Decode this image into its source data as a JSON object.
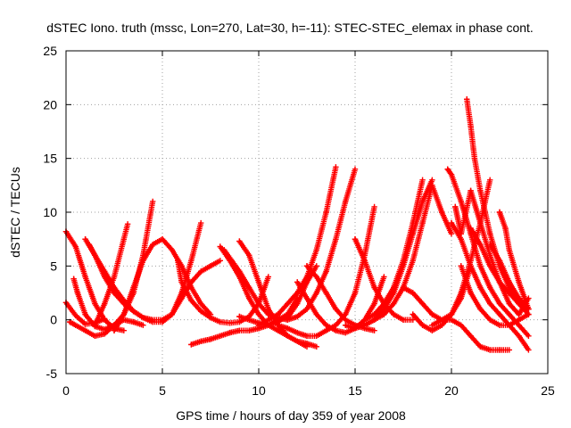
{
  "chart_data": {
    "type": "scatter",
    "title": "dSTEC Iono. truth (mssc, Lon=270, Lat=30, h=-11): STEC-STEC_elemax in phase cont.",
    "xlabel": "GPS time / hours of day 359 of year 2008",
    "ylabel": "dSTEC  / TECUs",
    "xlim": [
      0,
      25
    ],
    "ylim": [
      -5,
      25
    ],
    "x_ticks": [
      0,
      5,
      10,
      15,
      20,
      25
    ],
    "y_ticks": [
      -5,
      0,
      5,
      10,
      15,
      20,
      25
    ],
    "x_tick_labels": [
      "0",
      "5",
      "10",
      "15",
      "20",
      "25"
    ],
    "y_tick_labels": [
      "-5",
      "0",
      "5",
      "10",
      "15",
      "20",
      "25"
    ],
    "grid": true,
    "marker": "+",
    "color": "#ff0000",
    "series": [
      {
        "x": [
          0.0,
          0.5,
          1.0,
          1.5,
          2.0,
          2.5,
          3.0
        ],
        "y": [
          8.2,
          6.8,
          4.0,
          1.5,
          0.0,
          -0.8,
          -1.0
        ]
      },
      {
        "x": [
          0.0,
          0.5,
          1.0,
          1.5,
          2.0
        ],
        "y": [
          1.6,
          0.4,
          -0.4,
          -0.3,
          0.1
        ]
      },
      {
        "x": [
          0.2,
          0.5,
          1.0,
          1.5,
          2.0,
          2.5,
          3.0,
          3.5,
          4.0,
          4.5
        ],
        "y": [
          -0.2,
          -0.5,
          -1.0,
          -1.5,
          -1.3,
          -0.5,
          0.5,
          2.5,
          6.0,
          11.0
        ]
      },
      {
        "x": [
          0.4,
          0.6,
          1.0,
          1.5,
          2.0,
          2.5,
          3.0,
          3.5,
          4.0
        ],
        "y": [
          3.8,
          2.5,
          0.5,
          -0.6,
          -0.9,
          -0.5,
          0.0,
          -0.2,
          -0.5
        ]
      },
      {
        "x": [
          1.0,
          1.5,
          2.0,
          2.5,
          3.0,
          3.5,
          4.0,
          4.5,
          5.0,
          5.5,
          6.0,
          6.5,
          7.0,
          7.5,
          8.0
        ],
        "y": [
          7.5,
          6.0,
          4.0,
          2.5,
          1.5,
          0.8,
          0.2,
          0.0,
          0.0,
          0.5,
          2.0,
          3.5,
          4.5,
          5.0,
          5.5
        ]
      },
      {
        "x": [
          1.2,
          1.5,
          2.0,
          2.5,
          3.0,
          3.5,
          4.0,
          4.5,
          5.0,
          5.5,
          6.0,
          6.5,
          7.0
        ],
        "y": [
          7.0,
          6.0,
          4.5,
          3.0,
          1.8,
          0.8,
          0.2,
          -0.2,
          -0.2,
          0.5,
          2.5,
          5.5,
          9.0
        ]
      },
      {
        "x": [
          1.5,
          2.0,
          2.5,
          3.0,
          3.2
        ],
        "y": [
          -0.5,
          1.5,
          4.0,
          7.5,
          8.9
        ]
      },
      {
        "x": [
          2.5,
          3.0,
          3.5,
          4.0,
          4.5,
          5.0,
          5.5,
          6.0,
          6.5,
          7.0,
          7.5
        ],
        "y": [
          -1.0,
          0.5,
          3.0,
          5.5,
          7.0,
          7.5,
          6.5,
          5.0,
          3.0,
          1.5,
          0.5
        ]
      },
      {
        "x": [
          5.8,
          6.0,
          6.5,
          7.0,
          7.5,
          8.0,
          8.5,
          9.0,
          9.5,
          10.0,
          10.5
        ],
        "y": [
          5.5,
          3.5,
          1.8,
          0.8,
          0.2,
          -0.2,
          -0.3,
          -0.2,
          0.3,
          1.5,
          4.0
        ]
      },
      {
        "x": [
          6.5,
          7.0,
          7.5,
          8.0,
          8.5,
          9.0,
          9.5,
          10.0,
          10.5,
          11.0,
          11.5
        ],
        "y": [
          -2.3,
          -2.0,
          -1.8,
          -1.5,
          -1.2,
          -1.0,
          -1.0,
          -0.8,
          -0.5,
          0.0,
          0.5
        ]
      },
      {
        "x": [
          8.0,
          8.5,
          9.0,
          9.5,
          10.0,
          10.5,
          11.0,
          11.5,
          12.0,
          12.5
        ],
        "y": [
          6.8,
          5.5,
          4.0,
          2.0,
          0.5,
          -0.5,
          -1.0,
          -1.5,
          -2.0,
          -2.5
        ]
      },
      {
        "x": [
          8.2,
          8.6,
          9.0,
          9.5,
          10.0,
          10.5,
          11.0,
          11.5,
          12.0,
          12.5,
          13.0
        ],
        "y": [
          6.5,
          5.5,
          4.5,
          3.0,
          1.5,
          0.5,
          0.0,
          0.2,
          1.5,
          3.5,
          5.0
        ]
      },
      {
        "x": [
          9.0,
          9.5,
          10.0,
          10.5,
          11.0,
          11.5,
          12.0,
          12.5,
          13.0
        ],
        "y": [
          7.3,
          6.0,
          3.5,
          1.0,
          -0.5,
          -1.5,
          -2.0,
          -2.2,
          -2.5
        ]
      },
      {
        "x": [
          9.0,
          9.5,
          10.0,
          10.5,
          11.0,
          11.5,
          12.0
        ],
        "y": [
          0.3,
          0.0,
          -0.3,
          -0.5,
          -0.2,
          0.5,
          2.0
        ]
      },
      {
        "x": [
          10.0,
          10.5,
          11.0,
          11.5,
          12.0,
          12.5,
          13.0,
          13.5,
          14.0
        ],
        "y": [
          -0.5,
          0.0,
          0.5,
          1.5,
          2.5,
          4.0,
          6.5,
          10.0,
          14.2
        ]
      },
      {
        "x": [
          10.5,
          11.0,
          11.5,
          12.0,
          12.5,
          13.0,
          13.5,
          14.0,
          14.5,
          15.0
        ],
        "y": [
          0.5,
          0.2,
          0.0,
          0.3,
          1.0,
          2.5,
          4.5,
          7.5,
          11.0,
          14.0
        ]
      },
      {
        "x": [
          11.0,
          11.5,
          12.0,
          12.5,
          13.0,
          13.5,
          14.0,
          14.5,
          15.0,
          15.5,
          16.0
        ],
        "y": [
          -0.5,
          -0.8,
          -1.2,
          -1.5,
          -1.5,
          -1.0,
          -0.5,
          0.5,
          2.5,
          6.0,
          10.5
        ]
      },
      {
        "x": [
          12.0,
          12.5,
          13.0,
          13.5,
          14.0,
          14.5,
          15.0,
          15.5,
          16.0,
          16.5
        ],
        "y": [
          3.5,
          2.0,
          0.5,
          -0.5,
          -1.0,
          -1.2,
          -0.8,
          0.0,
          1.5,
          4.0
        ]
      },
      {
        "x": [
          12.5,
          13.0,
          13.5,
          14.0,
          14.5,
          15.0,
          15.5,
          16.0
        ],
        "y": [
          5.0,
          4.0,
          2.5,
          1.0,
          0.0,
          -0.5,
          -0.8,
          -1.0
        ]
      },
      {
        "x": [
          14.5,
          15.0,
          15.5,
          16.0,
          16.5,
          17.0,
          17.5,
          18.0,
          18.5,
          19.0
        ],
        "y": [
          -0.5,
          -0.8,
          -0.5,
          0.0,
          1.0,
          2.5,
          5.0,
          8.0,
          11.0,
          13.0
        ]
      },
      {
        "x": [
          15.0,
          15.5,
          16.0,
          16.5,
          17.0,
          17.5,
          18.0
        ],
        "y": [
          7.5,
          5.5,
          3.0,
          1.5,
          0.5,
          0.0,
          0.0
        ]
      },
      {
        "x": [
          15.5,
          16.0,
          16.5,
          17.0,
          17.5,
          18.0,
          18.5
        ],
        "y": [
          0.0,
          0.5,
          1.5,
          3.0,
          5.5,
          9.0,
          13.0
        ]
      },
      {
        "x": [
          16.0,
          16.5,
          17.0,
          17.5,
          18.0,
          18.5,
          19.0,
          19.5,
          20.0
        ],
        "y": [
          0.0,
          0.5,
          1.5,
          3.0,
          5.5,
          9.0,
          12.5,
          10.0,
          8.0
        ]
      },
      {
        "x": [
          17.5,
          18.0,
          18.5,
          19.0,
          19.5,
          20.0,
          20.5,
          21.0
        ],
        "y": [
          3.0,
          2.5,
          1.5,
          0.5,
          0.0,
          0.5,
          2.0,
          5.0
        ]
      },
      {
        "x": [
          18.0,
          18.5,
          19.0,
          19.5,
          20.0,
          20.5,
          21.0,
          21.5,
          22.0
        ],
        "y": [
          0.5,
          -0.5,
          -1.0,
          -0.5,
          0.5,
          2.5,
          5.5,
          9.0,
          13.0
        ]
      },
      {
        "x": [
          19.0,
          19.5,
          20.0,
          20.5,
          21.0,
          21.5,
          22.0,
          22.5,
          23.0
        ],
        "y": [
          -0.5,
          0.0,
          0.0,
          -0.5,
          -1.5,
          -2.5,
          -2.8,
          -2.8,
          -2.8
        ]
      },
      {
        "x": [
          19.8,
          20.0,
          20.5,
          21.0,
          21.5,
          22.0,
          22.5,
          23.0,
          23.5,
          24.0
        ],
        "y": [
          14.0,
          13.5,
          11.0,
          8.0,
          5.0,
          3.0,
          1.5,
          0.5,
          -0.5,
          -1.5
        ]
      },
      {
        "x": [
          20.0,
          20.5,
          21.0,
          21.5,
          22.0,
          22.5,
          23.0,
          23.5,
          24.0
        ],
        "y": [
          9.0,
          7.5,
          5.0,
          3.0,
          1.5,
          0.5,
          -0.5,
          -1.5,
          -2.8
        ]
      },
      {
        "x": [
          20.8,
          21.0,
          21.2,
          21.5,
          22.0,
          22.5,
          23.0,
          23.5,
          24.0
        ],
        "y": [
          20.5,
          18.0,
          15.0,
          12.0,
          8.0,
          5.0,
          3.0,
          1.5,
          0.5
        ]
      },
      {
        "x": [
          20.5,
          21.0,
          21.5,
          22.0,
          22.5,
          23.0,
          23.5,
          24.0
        ],
        "y": [
          5.0,
          2.5,
          1.0,
          0.0,
          -0.5,
          -0.5,
          0.0,
          0.5
        ]
      },
      {
        "x": [
          20.2,
          20.5,
          21.0,
          21.5,
          22.0,
          22.5,
          23.0,
          23.5,
          24.0
        ],
        "y": [
          10.5,
          8.0,
          12.0,
          9.0,
          6.0,
          3.5,
          1.5,
          0.5,
          2.0
        ]
      },
      {
        "x": [
          21.0,
          21.5,
          22.0,
          22.5,
          23.0,
          23.5,
          24.0
        ],
        "y": [
          8.5,
          7.0,
          5.0,
          3.5,
          2.5,
          1.5,
          1.0
        ]
      },
      {
        "x": [
          22.5,
          22.8,
          23.0,
          23.5,
          24.0
        ],
        "y": [
          10.0,
          8.5,
          6.5,
          3.5,
          1.0
        ]
      },
      {
        "x": [
          22.0,
          22.5,
          23.0,
          23.5,
          24.0
        ],
        "y": [
          7.0,
          5.5,
          3.5,
          2.0,
          1.0
        ]
      }
    ]
  }
}
